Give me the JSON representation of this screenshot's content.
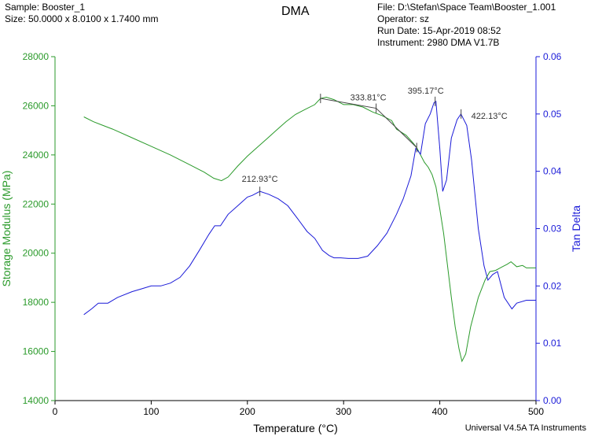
{
  "header": {
    "sample": "Sample: Booster_1",
    "size": "Size:  50.0000 x 8.0100 x 1.7400 mm",
    "file": "File: D:\\Stefan\\Space Team\\Booster_1.001",
    "operator": "Operator: sz",
    "run_date": "Run Date: 15-Apr-2019 08:52",
    "instrument": "Instrument: 2980 DMA V1.7B"
  },
  "footer": "Universal V4.5A TA Instruments",
  "colors": {
    "storage": "#2a9a2a",
    "tan": "#1a1ad8",
    "axis_left": "#2a9a2a",
    "axis_right": "#1a1ad8"
  },
  "chart_data": {
    "type": "line",
    "title": "DMA",
    "xlabel": "Temperature (°C)",
    "ylabel": "Storage Modulus (MPa)",
    "y2label": "Tan Delta",
    "xlim": [
      0,
      500
    ],
    "ylim": [
      14000,
      28000
    ],
    "y2lim": [
      0.0,
      0.06
    ],
    "xticks": [
      "0",
      "100",
      "200",
      "300",
      "400",
      "500"
    ],
    "yticks": [
      "14000",
      "16000",
      "18000",
      "20000",
      "22000",
      "24000",
      "26000",
      "28000"
    ],
    "y2ticks": [
      "0.00",
      "0.01",
      "0.02",
      "0.03",
      "0.04",
      "0.05",
      "0.06"
    ],
    "grid": false,
    "series": [
      {
        "name": "Storage Modulus (MPa)",
        "axis": "left",
        "points": [
          [
            30,
            25550
          ],
          [
            40,
            25350
          ],
          [
            60,
            25050
          ],
          [
            80,
            24700
          ],
          [
            100,
            24350
          ],
          [
            120,
            24000
          ],
          [
            140,
            23600
          ],
          [
            155,
            23300
          ],
          [
            165,
            23050
          ],
          [
            173,
            22950
          ],
          [
            180,
            23100
          ],
          [
            190,
            23550
          ],
          [
            200,
            23950
          ],
          [
            210,
            24300
          ],
          [
            220,
            24650
          ],
          [
            230,
            25000
          ],
          [
            240,
            25350
          ],
          [
            250,
            25650
          ],
          [
            260,
            25850
          ],
          [
            270,
            26050
          ],
          [
            276,
            26300
          ],
          [
            282,
            26350
          ],
          [
            290,
            26250
          ],
          [
            300,
            26050
          ],
          [
            310,
            26050
          ],
          [
            320,
            25950
          ],
          [
            330,
            25750
          ],
          [
            340,
            25600
          ],
          [
            350,
            25400
          ],
          [
            355,
            25050
          ],
          [
            365,
            24800
          ],
          [
            372,
            24500
          ],
          [
            376,
            24300
          ],
          [
            380,
            24000
          ],
          [
            384,
            23700
          ],
          [
            388,
            23500
          ],
          [
            392,
            23200
          ],
          [
            396,
            22700
          ],
          [
            400,
            21800
          ],
          [
            404,
            20800
          ],
          [
            408,
            19500
          ],
          [
            412,
            18200
          ],
          [
            416,
            17000
          ],
          [
            420,
            16100
          ],
          [
            423,
            15600
          ],
          [
            427,
            15900
          ],
          [
            432,
            17000
          ],
          [
            440,
            18200
          ],
          [
            447,
            18900
          ],
          [
            452,
            19250
          ],
          [
            458,
            19300
          ],
          [
            465,
            19450
          ],
          [
            470,
            19550
          ],
          [
            474,
            19650
          ],
          [
            480,
            19450
          ],
          [
            486,
            19500
          ],
          [
            490,
            19400
          ],
          [
            500,
            19400
          ]
        ]
      },
      {
        "name": "Tan Delta",
        "axis": "right",
        "points": [
          [
            30,
            0.015
          ],
          [
            38,
            0.016
          ],
          [
            45,
            0.017
          ],
          [
            55,
            0.017
          ],
          [
            65,
            0.018
          ],
          [
            80,
            0.019
          ],
          [
            90,
            0.0195
          ],
          [
            100,
            0.02
          ],
          [
            110,
            0.02
          ],
          [
            120,
            0.0205
          ],
          [
            130,
            0.0215
          ],
          [
            140,
            0.0235
          ],
          [
            150,
            0.0262
          ],
          [
            160,
            0.029
          ],
          [
            166,
            0.0305
          ],
          [
            172,
            0.0305
          ],
          [
            180,
            0.0325
          ],
          [
            190,
            0.034
          ],
          [
            200,
            0.0355
          ],
          [
            205,
            0.0358
          ],
          [
            213,
            0.0365
          ],
          [
            222,
            0.036
          ],
          [
            232,
            0.0352
          ],
          [
            242,
            0.034
          ],
          [
            252,
            0.0318
          ],
          [
            262,
            0.0295
          ],
          [
            270,
            0.0283
          ],
          [
            278,
            0.0262
          ],
          [
            285,
            0.0253
          ],
          [
            290,
            0.0249
          ],
          [
            297,
            0.0249
          ],
          [
            305,
            0.0248
          ],
          [
            315,
            0.0248
          ],
          [
            325,
            0.0252
          ],
          [
            335,
            0.027
          ],
          [
            345,
            0.0292
          ],
          [
            355,
            0.0325
          ],
          [
            362,
            0.0352
          ],
          [
            370,
            0.0392
          ],
          [
            375,
            0.044
          ],
          [
            380,
            0.043
          ],
          [
            385,
            0.0483
          ],
          [
            390,
            0.05
          ],
          [
            394,
            0.052
          ],
          [
            396,
            0.0522
          ],
          [
            400,
            0.044
          ],
          [
            403,
            0.0365
          ],
          [
            407,
            0.0385
          ],
          [
            412,
            0.0458
          ],
          [
            418,
            0.049
          ],
          [
            422,
            0.05
          ],
          [
            428,
            0.048
          ],
          [
            433,
            0.042
          ],
          [
            440,
            0.03
          ],
          [
            446,
            0.0235
          ],
          [
            450,
            0.021
          ],
          [
            455,
            0.022
          ],
          [
            460,
            0.0225
          ],
          [
            467,
            0.018
          ],
          [
            475,
            0.016
          ],
          [
            480,
            0.017
          ],
          [
            490,
            0.0175
          ],
          [
            500,
            0.0175
          ]
        ]
      }
    ],
    "annotations": [
      {
        "label": "212.93°C",
        "x": 212.93,
        "series": "Tan Delta",
        "value": 0.0365
      },
      {
        "label": "333.81°C",
        "x": 333.81,
        "series": "Storage Modulus (MPa)",
        "value": 25900
      },
      {
        "label": "395.17°C",
        "x": 395.17,
        "series": "Tan Delta",
        "value": 0.0522
      },
      {
        "label": "422.13°C",
        "x": 422.13,
        "series": "Tan Delta",
        "value": 0.05
      }
    ]
  }
}
